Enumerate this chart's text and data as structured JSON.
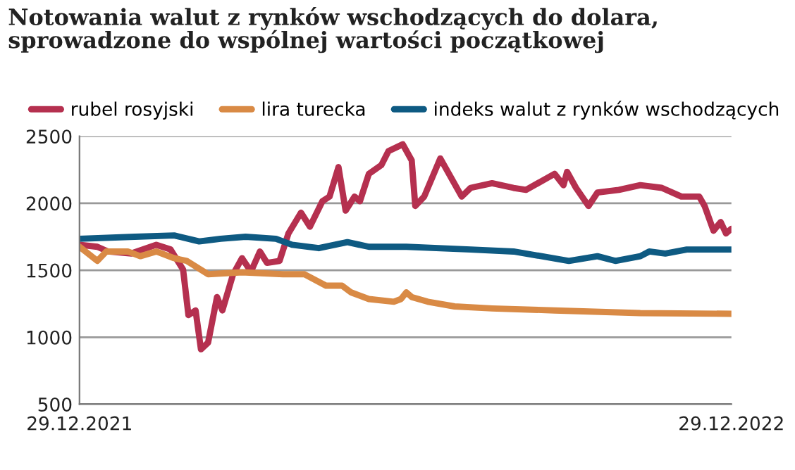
{
  "chart_data": {
    "type": "line",
    "title": "Notowania walut z rynków wschodzących do dolara,\nsprowadzone do wspólnej wartości początkowej",
    "series": [
      {
        "name": "rubel rosyjski",
        "color": "#b5304f",
        "x": [
          "2021-12-29",
          "2022-01-08",
          "2022-01-14",
          "2022-01-27",
          "2022-02-10",
          "2022-02-18",
          "2022-02-25",
          "2022-02-28",
          "2022-03-04",
          "2022-03-07",
          "2022-03-11",
          "2022-03-16",
          "2022-03-19",
          "2022-03-25",
          "2022-03-30",
          "2022-04-04",
          "2022-04-09",
          "2022-04-13",
          "2022-04-20",
          "2022-04-25",
          "2022-05-02",
          "2022-05-07",
          "2022-05-14",
          "2022-05-18",
          "2022-05-23",
          "2022-05-27",
          "2022-06-01",
          "2022-06-04",
          "2022-06-09",
          "2022-06-16",
          "2022-06-20",
          "2022-06-28",
          "2022-07-03",
          "2022-07-05",
          "2022-07-10",
          "2022-07-19",
          "2022-07-31",
          "2022-08-05",
          "2022-08-17",
          "2022-08-29",
          "2022-09-05",
          "2022-09-21",
          "2022-09-26",
          "2022-09-28",
          "2022-10-03",
          "2022-10-10",
          "2022-10-15",
          "2022-10-27",
          "2022-11-08",
          "2022-11-20",
          "2022-12-01",
          "2022-12-11",
          "2022-12-14",
          "2022-12-19",
          "2022-12-23",
          "2022-12-26",
          "2022-12-29"
        ],
        "values": [
          1690,
          1675,
          1640,
          1625,
          1690,
          1655,
          1505,
          1165,
          1200,
          910,
          960,
          1300,
          1200,
          1470,
          1590,
          1490,
          1640,
          1555,
          1570,
          1775,
          1930,
          1825,
          2015,
          2050,
          2270,
          1945,
          2050,
          2015,
          2220,
          2285,
          2390,
          2440,
          2320,
          1980,
          2050,
          2335,
          2050,
          2115,
          2150,
          2115,
          2100,
          2220,
          2135,
          2235,
          2115,
          1980,
          2080,
          2100,
          2135,
          2115,
          2050,
          2050,
          1980,
          1795,
          1860,
          1775,
          1810
        ]
      },
      {
        "name": "lira turecka",
        "color": "#d98a45",
        "x": [
          "2021-12-29",
          "2022-01-08",
          "2022-01-13",
          "2022-01-25",
          "2022-02-01",
          "2022-02-10",
          "2022-02-20",
          "2022-02-27",
          "2022-03-11",
          "2022-03-30",
          "2022-04-22",
          "2022-05-04",
          "2022-05-16",
          "2022-05-25",
          "2022-05-30",
          "2022-06-09",
          "2022-06-23",
          "2022-06-27",
          "2022-06-30",
          "2022-07-03",
          "2022-07-12",
          "2022-07-27",
          "2022-08-17",
          "2022-09-21",
          "2022-11-08",
          "2022-12-29"
        ],
        "values": [
          1675,
          1570,
          1640,
          1640,
          1605,
          1640,
          1590,
          1570,
          1470,
          1485,
          1470,
          1470,
          1385,
          1385,
          1335,
          1285,
          1265,
          1285,
          1335,
          1300,
          1265,
          1230,
          1215,
          1200,
          1180,
          1175
        ]
      },
      {
        "name": "indeks walut z rynków wschodzących",
        "color": "#0e5a82",
        "x": [
          "2021-12-29",
          "2022-01-29",
          "2022-02-20",
          "2022-03-06",
          "2022-03-18",
          "2022-04-01",
          "2022-04-18",
          "2022-04-27",
          "2022-05-12",
          "2022-05-28",
          "2022-06-09",
          "2022-06-18",
          "2022-06-30",
          "2022-08-05",
          "2022-08-29",
          "2022-09-29",
          "2022-10-15",
          "2022-10-25",
          "2022-11-08",
          "2022-11-13",
          "2022-11-22",
          "2022-12-04",
          "2022-12-29"
        ],
        "values": [
          1735,
          1750,
          1760,
          1715,
          1735,
          1750,
          1735,
          1690,
          1665,
          1710,
          1675,
          1675,
          1675,
          1655,
          1640,
          1570,
          1605,
          1570,
          1605,
          1640,
          1625,
          1655,
          1655
        ]
      }
    ],
    "xlim": [
      "2021-12-29",
      "2022-12-29"
    ],
    "xticks": [
      {
        "value": "2021-12-29",
        "label": "29.12.2021"
      },
      {
        "value": "2022-12-29",
        "label": "29.12.2022"
      }
    ],
    "ylim": [
      500,
      2500
    ],
    "yticks": [
      500,
      1000,
      1500,
      2000,
      2500
    ],
    "grid": "y",
    "legend": "top",
    "marker": "none",
    "line_style": "solid"
  }
}
